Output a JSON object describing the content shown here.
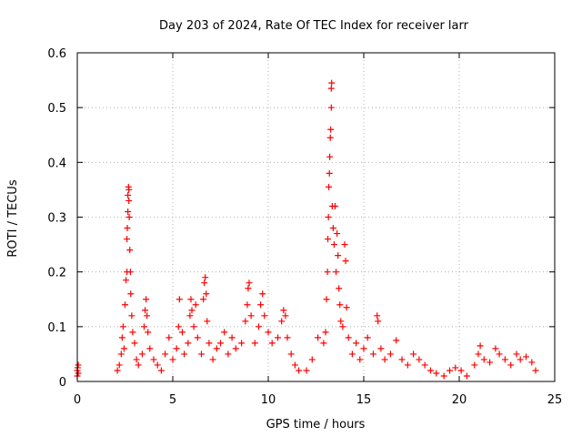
{
  "chart_data": {
    "type": "scatter",
    "title": "Day 203 of 2024, Rate Of TEC Index for receiver larr",
    "xlabel": "GPS time / hours",
    "ylabel": "ROTI / TECUs",
    "xlim": [
      0,
      25
    ],
    "ylim": [
      0,
      0.6
    ],
    "xticks": [
      0,
      5,
      10,
      15,
      20,
      25
    ],
    "yticks": [
      0,
      0.1,
      0.2,
      0.3,
      0.4,
      0.5,
      0.6
    ],
    "xtick_labels": [
      "0",
      "5",
      "10",
      "15",
      "20",
      "25"
    ],
    "ytick_labels": [
      "0",
      "0.1",
      "0.2",
      "0.3",
      "0.4",
      "0.5",
      "0.6"
    ],
    "grid": true,
    "marker": "+",
    "color": "#ff0000",
    "series": [
      {
        "values": [
          [
            0.0,
            0.01
          ],
          [
            0.0,
            0.02
          ],
          [
            0.02,
            0.025
          ],
          [
            0.05,
            0.015
          ],
          [
            0.05,
            0.03
          ],
          [
            2.1,
            0.02
          ],
          [
            2.2,
            0.03
          ],
          [
            2.3,
            0.05
          ],
          [
            2.35,
            0.08
          ],
          [
            2.4,
            0.1
          ],
          [
            2.45,
            0.06
          ],
          [
            2.5,
            0.14
          ],
          [
            2.55,
            0.185
          ],
          [
            2.6,
            0.2
          ],
          [
            2.6,
            0.26
          ],
          [
            2.62,
            0.28
          ],
          [
            2.65,
            0.31
          ],
          [
            2.65,
            0.34
          ],
          [
            2.68,
            0.355
          ],
          [
            2.7,
            0.35
          ],
          [
            2.7,
            0.33
          ],
          [
            2.72,
            0.3
          ],
          [
            2.75,
            0.24
          ],
          [
            2.78,
            0.2
          ],
          [
            2.8,
            0.16
          ],
          [
            2.85,
            0.12
          ],
          [
            2.9,
            0.09
          ],
          [
            3.0,
            0.07
          ],
          [
            3.1,
            0.04
          ],
          [
            3.2,
            0.03
          ],
          [
            3.4,
            0.05
          ],
          [
            3.5,
            0.1
          ],
          [
            3.55,
            0.13
          ],
          [
            3.6,
            0.15
          ],
          [
            3.65,
            0.12
          ],
          [
            3.7,
            0.09
          ],
          [
            3.8,
            0.06
          ],
          [
            4.0,
            0.04
          ],
          [
            4.2,
            0.03
          ],
          [
            4.4,
            0.02
          ],
          [
            4.6,
            0.05
          ],
          [
            4.8,
            0.08
          ],
          [
            5.0,
            0.04
          ],
          [
            5.2,
            0.06
          ],
          [
            5.3,
            0.1
          ],
          [
            5.35,
            0.15
          ],
          [
            5.5,
            0.09
          ],
          [
            5.6,
            0.05
          ],
          [
            5.8,
            0.07
          ],
          [
            5.9,
            0.12
          ],
          [
            5.95,
            0.15
          ],
          [
            6.0,
            0.13
          ],
          [
            6.1,
            0.1
          ],
          [
            6.2,
            0.14
          ],
          [
            6.3,
            0.08
          ],
          [
            6.5,
            0.05
          ],
          [
            6.6,
            0.15
          ],
          [
            6.65,
            0.18
          ],
          [
            6.7,
            0.19
          ],
          [
            6.75,
            0.16
          ],
          [
            6.8,
            0.11
          ],
          [
            6.9,
            0.07
          ],
          [
            7.1,
            0.04
          ],
          [
            7.3,
            0.06
          ],
          [
            7.5,
            0.07
          ],
          [
            7.7,
            0.09
          ],
          [
            7.9,
            0.05
          ],
          [
            8.1,
            0.08
          ],
          [
            8.3,
            0.06
          ],
          [
            8.6,
            0.07
          ],
          [
            8.8,
            0.11
          ],
          [
            8.9,
            0.14
          ],
          [
            8.95,
            0.17
          ],
          [
            9.0,
            0.18
          ],
          [
            9.1,
            0.12
          ],
          [
            9.3,
            0.07
          ],
          [
            9.5,
            0.1
          ],
          [
            9.6,
            0.14
          ],
          [
            9.7,
            0.16
          ],
          [
            9.8,
            0.12
          ],
          [
            10.0,
            0.09
          ],
          [
            10.2,
            0.07
          ],
          [
            10.5,
            0.08
          ],
          [
            10.7,
            0.11
          ],
          [
            10.8,
            0.13
          ],
          [
            10.9,
            0.12
          ],
          [
            11.0,
            0.08
          ],
          [
            11.2,
            0.05
          ],
          [
            11.4,
            0.03
          ],
          [
            11.6,
            0.02
          ],
          [
            12.0,
            0.02
          ],
          [
            12.3,
            0.04
          ],
          [
            12.6,
            0.08
          ],
          [
            12.9,
            0.07
          ],
          [
            13.0,
            0.09
          ],
          [
            13.05,
            0.15
          ],
          [
            13.1,
            0.2
          ],
          [
            13.12,
            0.26
          ],
          [
            13.15,
            0.3
          ],
          [
            13.17,
            0.355
          ],
          [
            13.2,
            0.38
          ],
          [
            13.22,
            0.41
          ],
          [
            13.25,
            0.445
          ],
          [
            13.27,
            0.46
          ],
          [
            13.3,
            0.5
          ],
          [
            13.3,
            0.535
          ],
          [
            13.32,
            0.545
          ],
          [
            13.35,
            0.32
          ],
          [
            13.4,
            0.28
          ],
          [
            13.45,
            0.25
          ],
          [
            13.5,
            0.32
          ],
          [
            13.55,
            0.2
          ],
          [
            13.6,
            0.27
          ],
          [
            13.65,
            0.23
          ],
          [
            13.7,
            0.17
          ],
          [
            13.75,
            0.14
          ],
          [
            13.8,
            0.11
          ],
          [
            13.9,
            0.1
          ],
          [
            14.0,
            0.25
          ],
          [
            14.05,
            0.22
          ],
          [
            14.1,
            0.135
          ],
          [
            14.2,
            0.08
          ],
          [
            14.4,
            0.05
          ],
          [
            14.6,
            0.07
          ],
          [
            14.8,
            0.04
          ],
          [
            15.0,
            0.06
          ],
          [
            15.2,
            0.08
          ],
          [
            15.5,
            0.05
          ],
          [
            15.7,
            0.12
          ],
          [
            15.75,
            0.11
          ],
          [
            15.9,
            0.06
          ],
          [
            16.1,
            0.04
          ],
          [
            16.4,
            0.05
          ],
          [
            16.7,
            0.075
          ],
          [
            17.0,
            0.04
          ],
          [
            17.3,
            0.03
          ],
          [
            17.6,
            0.05
          ],
          [
            17.9,
            0.04
          ],
          [
            18.2,
            0.03
          ],
          [
            18.5,
            0.02
          ],
          [
            18.8,
            0.015
          ],
          [
            19.2,
            0.01
          ],
          [
            19.5,
            0.02
          ],
          [
            19.8,
            0.025
          ],
          [
            20.1,
            0.02
          ],
          [
            20.4,
            0.01
          ],
          [
            20.8,
            0.03
          ],
          [
            21.0,
            0.05
          ],
          [
            21.1,
            0.065
          ],
          [
            21.3,
            0.04
          ],
          [
            21.6,
            0.035
          ],
          [
            21.9,
            0.06
          ],
          [
            22.1,
            0.05
          ],
          [
            22.4,
            0.04
          ],
          [
            22.7,
            0.03
          ],
          [
            23.0,
            0.05
          ],
          [
            23.2,
            0.04
          ],
          [
            23.5,
            0.045
          ],
          [
            23.8,
            0.035
          ],
          [
            24.0,
            0.02
          ]
        ]
      }
    ]
  }
}
